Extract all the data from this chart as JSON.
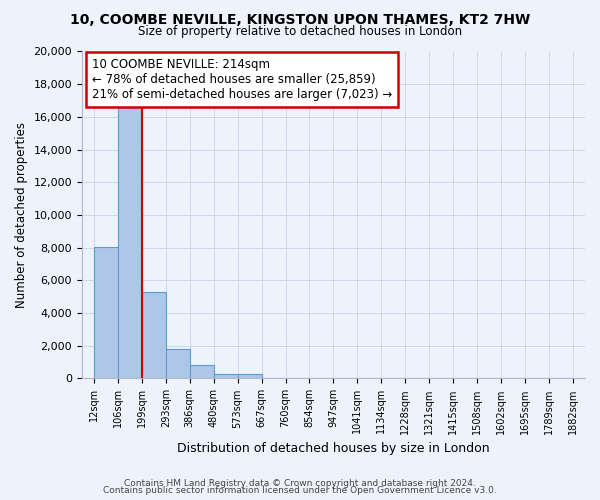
{
  "title": "10, COOMBE NEVILLE, KINGSTON UPON THAMES, KT2 7HW",
  "subtitle": "Size of property relative to detached houses in London",
  "xlabel": "Distribution of detached houses by size in London",
  "ylabel": "Number of detached properties",
  "bar_values": [
    8050,
    16600,
    5300,
    1800,
    800,
    300,
    300,
    0,
    0,
    0,
    0,
    0,
    0,
    0,
    0,
    0,
    0,
    0,
    0,
    0
  ],
  "categories": [
    "12sqm",
    "106sqm",
    "199sqm",
    "293sqm",
    "386sqm",
    "480sqm",
    "573sqm",
    "667sqm",
    "760sqm",
    "854sqm",
    "947sqm",
    "1041sqm",
    "1134sqm",
    "1228sqm",
    "1321sqm",
    "1415sqm",
    "1508sqm",
    "1602sqm",
    "1695sqm",
    "1789sqm",
    "1882sqm"
  ],
  "bar_color": "#aec6e8",
  "bar_edge_color": "#5a9fd4",
  "property_line_x": 2.0,
  "annotation_title": "10 COOMBE NEVILLE: 214sqm",
  "annotation_line1": "← 78% of detached houses are smaller (25,859)",
  "annotation_line2": "21% of semi-detached houses are larger (7,023) →",
  "annotation_box_color": "#ffffff",
  "annotation_box_edge": "#cc0000",
  "vline_color": "#cc0000",
  "ylim": [
    0,
    20000
  ],
  "yticks": [
    0,
    2000,
    4000,
    6000,
    8000,
    10000,
    12000,
    14000,
    16000,
    18000,
    20000
  ],
  "footer1": "Contains HM Land Registry data © Crown copyright and database right 2024.",
  "footer2": "Contains public sector information licensed under the Open Government Licence v3.0.",
  "bg_color": "#eef2fb",
  "grid_color": "#c8d4e8"
}
